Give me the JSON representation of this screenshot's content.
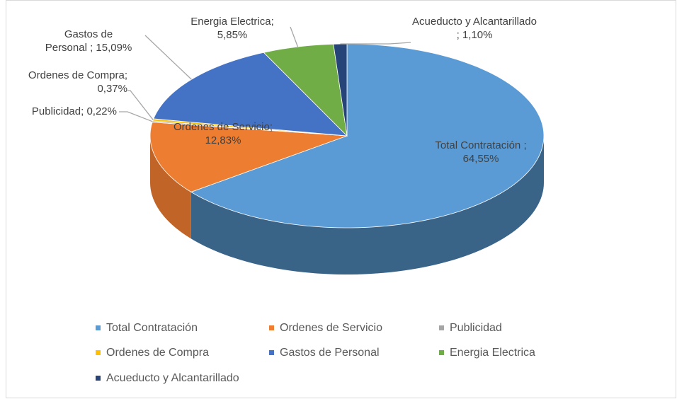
{
  "chart_data": {
    "type": "pie3d",
    "categories": [
      "Total Contratación",
      "Ordenes de Servicio",
      "Publicidad",
      "Ordenes de Compra",
      "Gastos de Personal",
      "Energia Electrica",
      "Acueducto y Alcantarillado"
    ],
    "values": [
      64.55,
      12.83,
      0.22,
      0.37,
      15.09,
      5.85,
      1.1
    ],
    "value_labels": [
      "Total Contratación ; 64,55%",
      "Ordenes de Servicio; 12,83%",
      "Publicidad; 0,22%",
      "Ordenes de Compra; 0,37%",
      "Gastos de Personal ; 15,09%",
      "Energia Electrica; 5,85%",
      "Acueducto y Alcantarillado ; 1,10%"
    ],
    "colors": [
      "#5b9bd5",
      "#ed7d31",
      "#a5a5a5",
      "#ffc000",
      "#4472c4",
      "#70ad47",
      "#264478"
    ],
    "legend": "bottom"
  }
}
